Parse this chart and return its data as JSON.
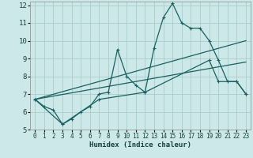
{
  "xlabel": "Humidex (Indice chaleur)",
  "bg_color": "#cce8e8",
  "grid_color": "#aacccc",
  "line_color": "#1a6060",
  "xlim": [
    -0.5,
    23.5
  ],
  "ylim": [
    5,
    12.2
  ],
  "xticks": [
    0,
    1,
    2,
    3,
    4,
    5,
    6,
    7,
    8,
    9,
    10,
    11,
    12,
    13,
    14,
    15,
    16,
    17,
    18,
    19,
    20,
    21,
    22,
    23
  ],
  "yticks": [
    5,
    6,
    7,
    8,
    9,
    10,
    11,
    12
  ],
  "series1_x": [
    0,
    1,
    2,
    3,
    4,
    5,
    6,
    7,
    8,
    9,
    10,
    11,
    12,
    13,
    14,
    15,
    16,
    17,
    18,
    19,
    20,
    21,
    22,
    23
  ],
  "series1_y": [
    6.7,
    6.3,
    6.1,
    5.3,
    5.6,
    6.0,
    6.3,
    7.0,
    7.1,
    9.5,
    8.0,
    7.5,
    7.1,
    9.6,
    11.3,
    12.1,
    11.0,
    10.7,
    10.7,
    10.0,
    8.9,
    7.7,
    7.7,
    7.0
  ],
  "series2_x": [
    0,
    23
  ],
  "series2_y": [
    6.7,
    10.0
  ],
  "series3_x": [
    0,
    23
  ],
  "series3_y": [
    6.7,
    8.8
  ],
  "series4_x": [
    0,
    3,
    7,
    12,
    19,
    20,
    22,
    23
  ],
  "series4_y": [
    6.7,
    5.3,
    6.7,
    7.1,
    8.9,
    7.7,
    7.7,
    7.0
  ]
}
